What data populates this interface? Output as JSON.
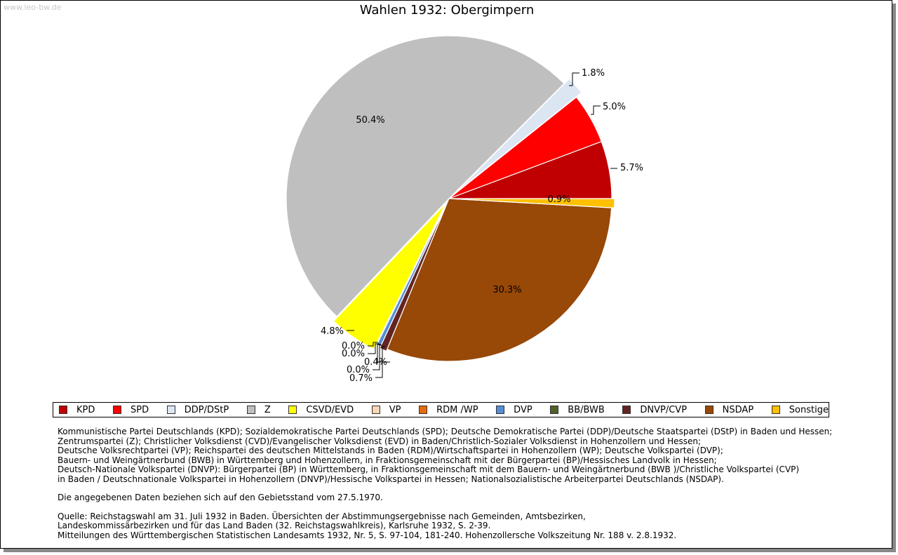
{
  "watermark": "www.leo-bw.de",
  "chart_data": {
    "type": "pie",
    "title": "Wahlen 1932: Obergimpern",
    "slices": [
      {
        "name": "KPD",
        "value": 5.7,
        "label": "5.7%",
        "color": "#c00000"
      },
      {
        "name": "SPD",
        "value": 5.0,
        "label": "5.0%",
        "color": "#ff0000"
      },
      {
        "name": "DDP/DStP",
        "value": 1.8,
        "label": "1.8%",
        "color": "#dce6f2"
      },
      {
        "name": "Z",
        "value": 50.4,
        "label": "50.4%",
        "color": "#bfbfbf"
      },
      {
        "name": "CSVD/EVD",
        "value": 4.8,
        "label": "4.8%",
        "color": "#ffff00"
      },
      {
        "name": "VP",
        "value": 0.0,
        "label": "0.0%",
        "color": "#fbd5b5"
      },
      {
        "name": "RDM /WP",
        "value": 0.0,
        "label": "0.0%",
        "color": "#e46c0a"
      },
      {
        "name": "DVP",
        "value": 0.4,
        "label": "0.4%",
        "color": "#558ed5"
      },
      {
        "name": "BB/BWB",
        "value": 0.0,
        "label": "0.0%",
        "color": "#4f6228"
      },
      {
        "name": "DNVP/CVP",
        "value": 0.7,
        "label": "0.7%",
        "color": "#632523"
      },
      {
        "name": "NSDAP",
        "value": 30.3,
        "label": "30.3%",
        "color": "#984807"
      },
      {
        "name": "Sonstige",
        "value": 0.9,
        "label": "0.9%",
        "color": "#ffc000"
      }
    ]
  },
  "notes": {
    "parties": [
      "Kommunistische Partei Deutschlands (KPD); Sozialdemokratische Partei Deutschlands (SPD); Deutsche Demokratische Partei (DDP)/Deutsche Staatspartei (DStP) in Baden und Hessen;",
      "Zentrumspartei (Z); Christlicher Volksdienst (CVD)/Evangelischer Volksdienst (EVD) in Baden/Christlich-Sozialer Volksdienst in Hohenzollern und Hessen;",
      "Deutsche Volksrechtpartei (VP); Reichspartei des deutschen Mittelstands in Baden (RDM)/Wirtschaftspartei in Hohenzollern (WP); Deutsche Volkspartei (DVP);",
      "Bauern- und Weingärtnerbund (BWB) in Württemberg und Hohenzollern, in Fraktionsgemeinschaft mit der Bürgerpartei (BP)/Hessisches Landvolk in Hessen;",
      "Deutsch-Nationale Volkspartei (DNVP): Bürgerpartei (BP) in Württemberg, in Fraktionsgemeinschaft mit dem Bauern- und Weingärtnerbund (BWB )/Christliche Volkspartei (CVP)",
      "in Baden / Deutschnationale Volkspartei in Hohenzollern (DNVP)/Hessische Volkspartei in Hessen; Nationalsozialistische Arbeiterpartei Deutschlands (NSDAP)."
    ],
    "territory": "Die angegebenen Daten beziehen sich auf den Gebietsstand vom 27.5.1970.",
    "source": [
      "Quelle: Reichstagswahl am 31. Juli 1932 in Baden. Übersichten der Abstimmungsergebnisse nach Gemeinden, Amtsbezirken,",
      "Landeskommissärbezirken und für das Land Baden (32. Reichstagswahlkreis), Karlsruhe 1932, S. 2-39.",
      "Mitteilungen des Württembergischen Statistischen Landesamts 1932, Nr. 5, S. 97-104, 181-240. Hohenzollersche Volkszeitung Nr. 188 v. 2.8.1932."
    ]
  }
}
